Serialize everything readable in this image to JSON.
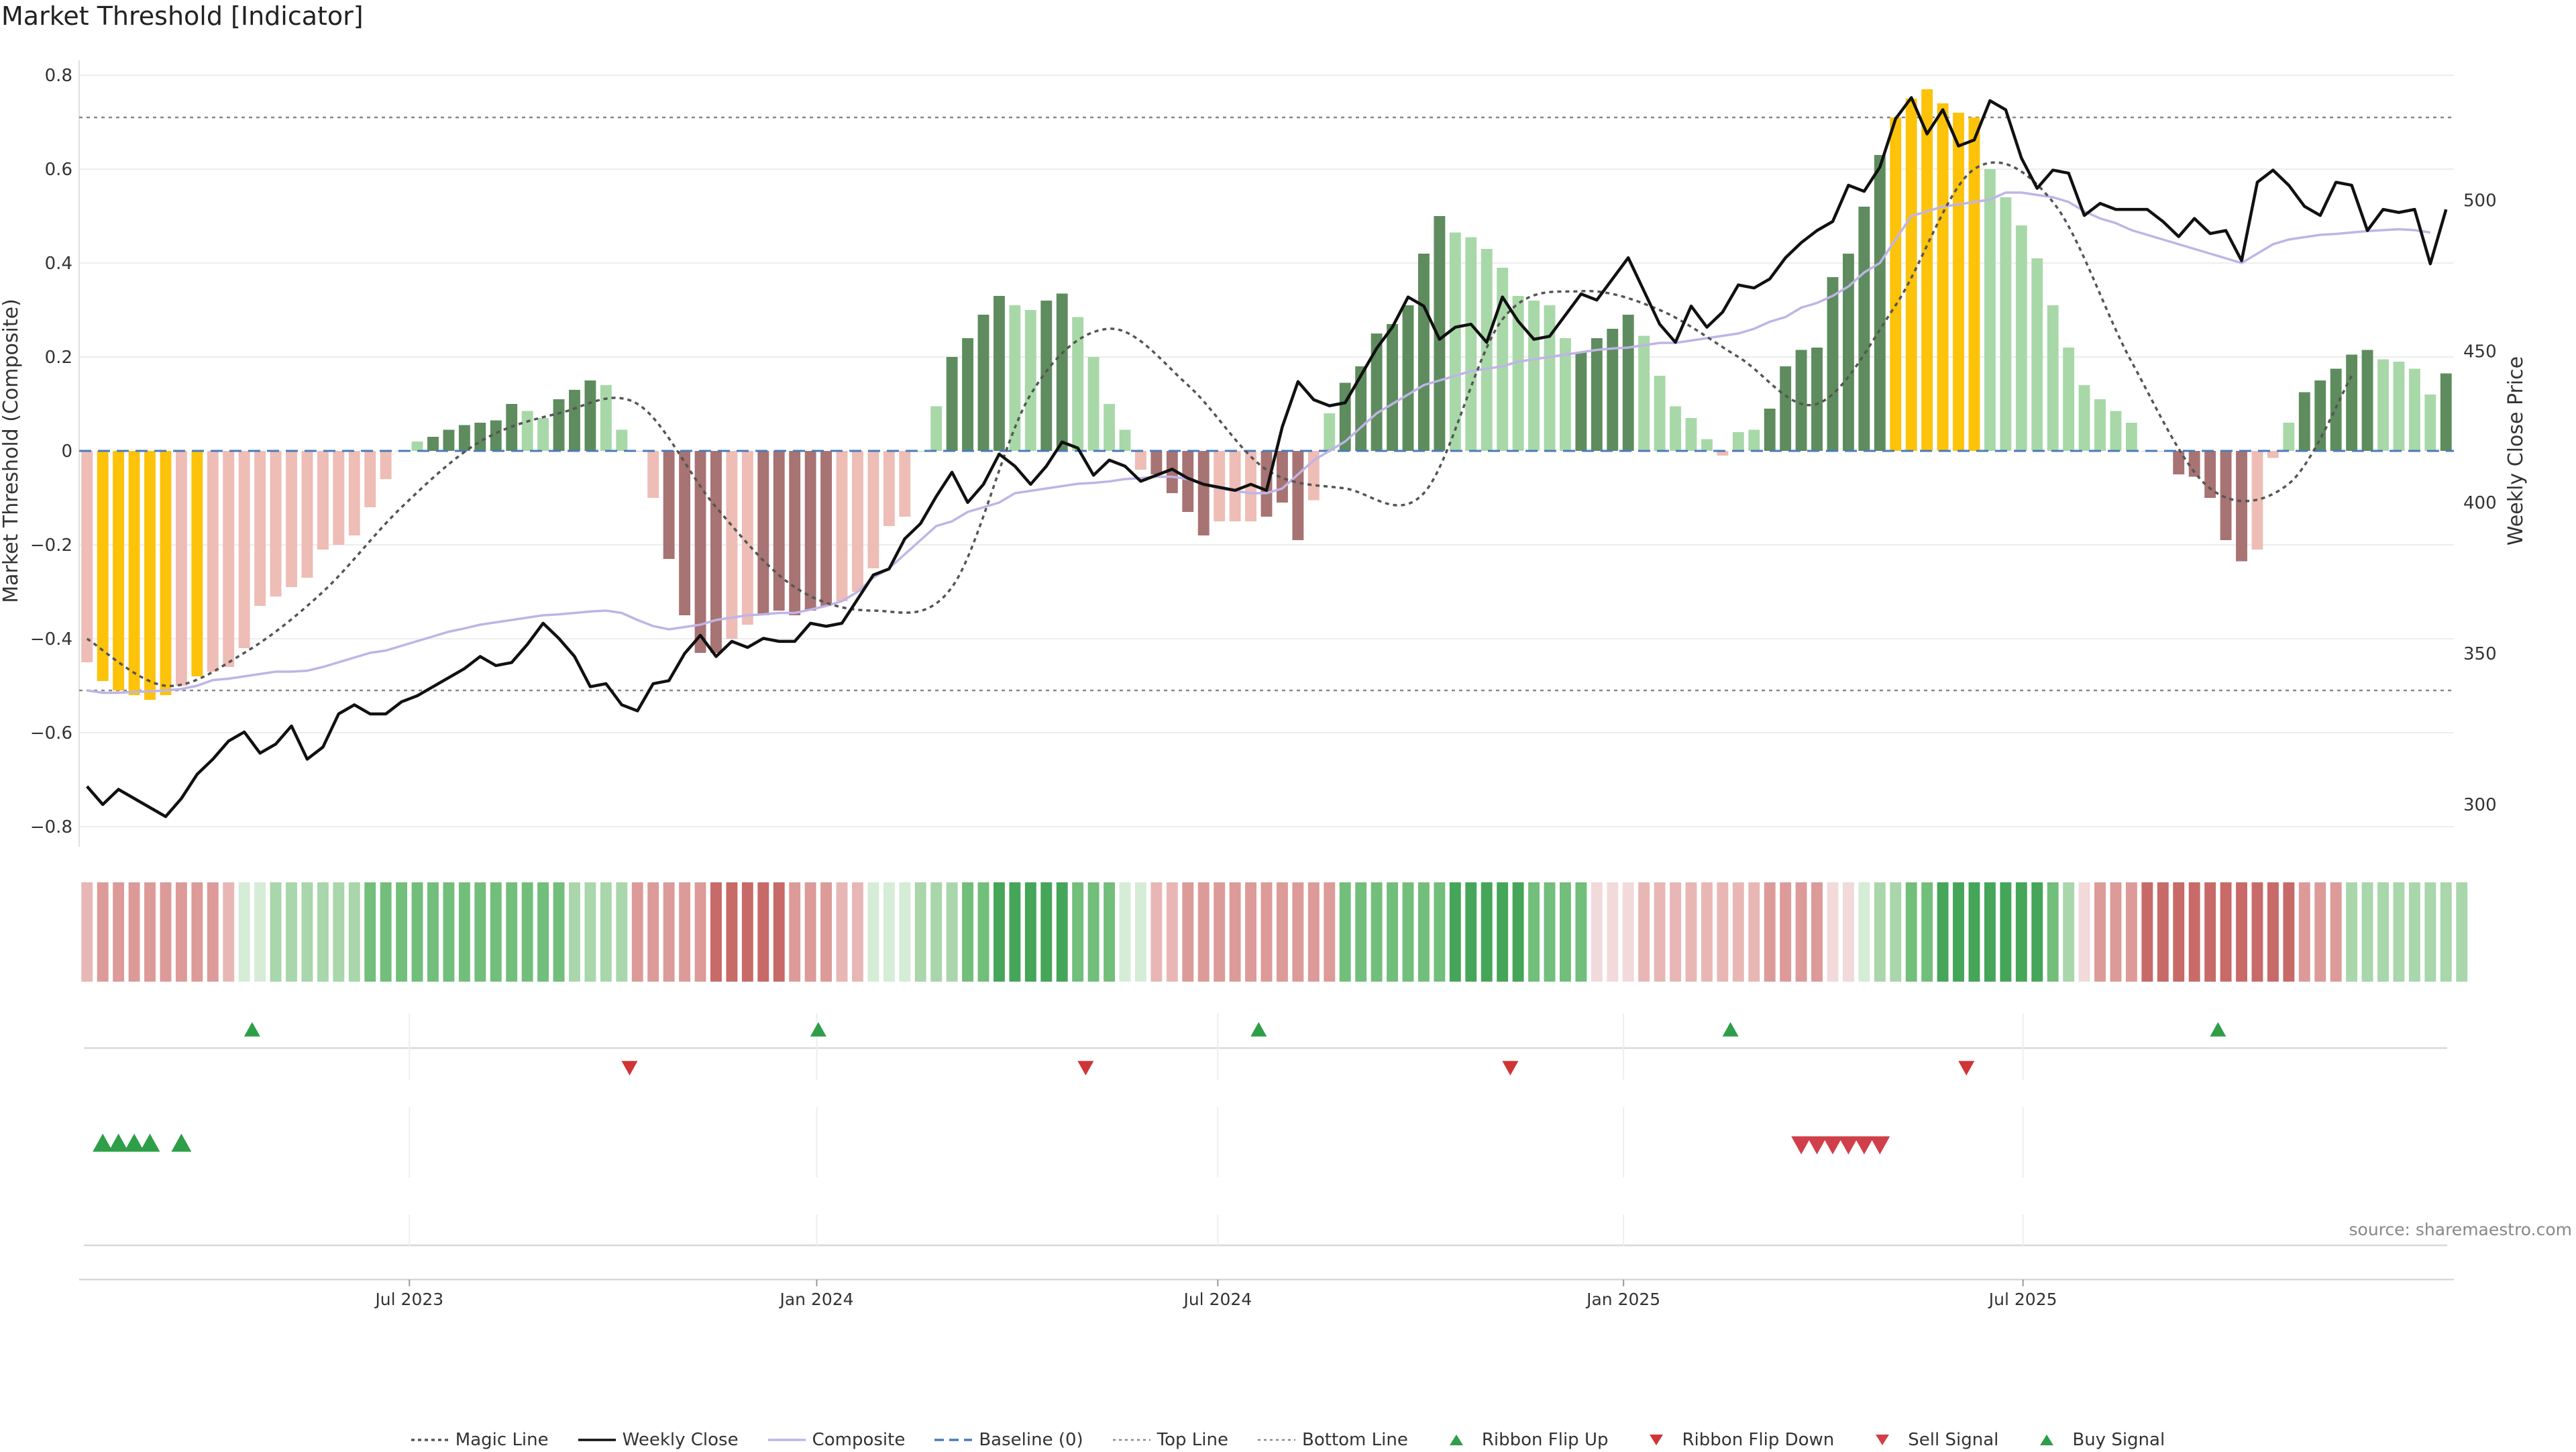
{
  "title": "Market Threshold [Indicator]",
  "source": "source: sharemaestro.com",
  "colors": {
    "yellow": "#FCC30A",
    "dark_green": "#5E8C5E",
    "light_green": "#A8D8A8",
    "dark_red": "#A87373",
    "light_red": "#EDBDB6",
    "magic": "#555555",
    "close": "#111111",
    "composite": "#BFB4E6",
    "baseline": "#4A7BB8",
    "flip_up": "#2E9E48",
    "flip_down": "#D03434",
    "sell": "#D0404A",
    "buy": "#2E9E48"
  },
  "chart_data": {
    "type": "bar",
    "title": "Market Threshold [Indicator]",
    "ylabel": "Market Threshold (Composite)",
    "y2label": "Weekly Close Price",
    "ylim": [
      -0.85,
      0.85
    ],
    "y2lim": [
      290,
      540
    ],
    "yticks": [
      "0.8",
      "0.6",
      "0.4",
      "0.2",
      "0",
      "−0.2",
      "−0.4",
      "−0.6",
      "−0.8"
    ],
    "yticks_values": [
      0.8,
      0.6,
      0.4,
      0.2,
      0,
      -0.2,
      -0.4,
      -0.6,
      -0.8
    ],
    "y2ticks": [
      "500",
      "450",
      "400",
      "350",
      "300"
    ],
    "y2ticks_values": [
      500,
      450,
      400,
      350,
      300
    ],
    "xticks": [
      "Jul 2023",
      "Jan 2024",
      "Jul 2024",
      "Jan 2025",
      "Jul 2025"
    ],
    "xticks_index": [
      20.5,
      46.4,
      71.9,
      97.7,
      123.1
    ],
    "top_line": 0.71,
    "bottom_line": -0.51,
    "composite": [
      -0.45,
      -0.49,
      -0.51,
      -0.52,
      -0.53,
      -0.52,
      -0.5,
      -0.48,
      -0.47,
      -0.46,
      -0.42,
      -0.33,
      -0.31,
      -0.29,
      -0.27,
      -0.21,
      -0.2,
      -0.18,
      -0.12,
      -0.06,
      0.0,
      0.02,
      0.03,
      0.045,
      0.055,
      0.06,
      0.065,
      0.1,
      0.085,
      0.07,
      0.11,
      0.13,
      0.15,
      0.14,
      0.045,
      0,
      -0.1,
      -0.23,
      -0.35,
      -0.43,
      -0.43,
      -0.4,
      -0.37,
      -0.35,
      -0.34,
      -0.35,
      -0.34,
      -0.33,
      -0.32,
      -0.3,
      -0.25,
      -0.16,
      -0.14,
      0,
      0.095,
      0.2,
      0.24,
      0.29,
      0.33,
      0.31,
      0.3,
      0.32,
      0.335,
      0.285,
      0.2,
      0.1,
      0.045,
      -0.04,
      -0.05,
      -0.09,
      -0.13,
      -0.18,
      -0.15,
      -0.15,
      -0.15,
      -0.14,
      -0.11,
      -0.19,
      -0.105,
      0.08,
      0.145,
      0.18,
      0.25,
      0.27,
      0.31,
      0.42,
      0.5,
      0.465,
      0.455,
      0.43,
      0.39,
      0.33,
      0.32,
      0.31,
      0.24,
      0.21,
      0.24,
      0.26,
      0.29,
      0.245,
      0.16,
      0.095,
      0.07,
      0.025,
      -0.01,
      0.04,
      0.045,
      0.09,
      0.18,
      0.215,
      0.22,
      0.37,
      0.42,
      0.52,
      0.63,
      0.71,
      0.75,
      0.77,
      0.74,
      0.72,
      0.71,
      0.6,
      0.54,
      0.48,
      0.41,
      0.31,
      0.22,
      0.14,
      0.11,
      0.085,
      0.06,
      0,
      0,
      -0.05,
      -0.055,
      -0.1,
      -0.19,
      -0.235,
      -0.21,
      -0.015,
      0.06,
      0.125,
      0.15,
      0.175,
      0.205,
      0.215,
      0.195,
      0.19,
      0.175,
      0.12,
      0.165
    ],
    "bar_colors": [
      "lr",
      "y",
      "y",
      "y",
      "y",
      "y",
      "lr",
      "y",
      "lr",
      "lr",
      "lr",
      "lr",
      "lr",
      "lr",
      "lr",
      "lr",
      "lr",
      "lr",
      "lr",
      "lr",
      "lg",
      "lg",
      "dg",
      "dg",
      "dg",
      "dg",
      "dg",
      "dg",
      "lg",
      "lg",
      "dg",
      "dg",
      "dg",
      "lg",
      "lg",
      "lr",
      "lr",
      "dr",
      "dr",
      "dr",
      "dr",
      "lr",
      "lr",
      "dr",
      "dr",
      "dr",
      "dr",
      "dr",
      "lr",
      "lr",
      "lr",
      "lr",
      "lr",
      "lg",
      "lg",
      "dg",
      "dg",
      "dg",
      "dg",
      "lg",
      "lg",
      "dg",
      "dg",
      "lg",
      "lg",
      "lg",
      "lg",
      "lr",
      "dr",
      "dr",
      "dr",
      "dr",
      "lr",
      "lr",
      "lr",
      "dr",
      "dr",
      "dr",
      "lr",
      "lg",
      "dg",
      "dg",
      "dg",
      "dg",
      "dg",
      "dg",
      "dg",
      "lg",
      "lg",
      "lg",
      "lg",
      "lg",
      "lg",
      "lg",
      "lg",
      "dg",
      "dg",
      "dg",
      "dg",
      "lg",
      "lg",
      "lg",
      "lg",
      "lg",
      "lr",
      "lg",
      "lg",
      "dg",
      "dg",
      "dg",
      "dg",
      "dg",
      "dg",
      "dg",
      "dg",
      "y",
      "y",
      "y",
      "y",
      "y",
      "y",
      "lg",
      "lg",
      "lg",
      "lg",
      "lg",
      "lg",
      "lg",
      "lg",
      "lg",
      "lg",
      "lg",
      "lr",
      "dr",
      "dr",
      "dr",
      "dr",
      "dr",
      "lr",
      "lr",
      "lg",
      "dg",
      "dg",
      "dg",
      "dg",
      "dg",
      "lg",
      "lg",
      "lg",
      "lg",
      "dg"
    ],
    "magic_line_x": [
      0,
      5,
      10,
      15,
      20,
      25,
      30,
      35,
      40,
      45,
      50,
      55,
      60,
      65,
      70,
      75,
      80,
      85,
      90,
      95,
      100,
      105,
      110,
      115,
      120,
      125,
      130,
      135,
      140,
      144
    ],
    "magic_line": [
      -0.4,
      -0.5,
      -0.43,
      -0.3,
      -0.12,
      0.02,
      0.08,
      0.1,
      -0.12,
      -0.29,
      -0.34,
      -0.29,
      0.12,
      0.26,
      0.14,
      -0.04,
      -0.08,
      -0.09,
      0.28,
      0.34,
      0.3,
      0.2,
      0.1,
      0.31,
      0.6,
      0.53,
      0.19,
      -0.08,
      -0.07,
      0.16
    ],
    "weekly_close": [
      306,
      300,
      305,
      302,
      299,
      296,
      302,
      310,
      315,
      321,
      324,
      317,
      320,
      326,
      315,
      319,
      330,
      333,
      330,
      330,
      334,
      336,
      339,
      342,
      345,
      349,
      346,
      347,
      353,
      360,
      355,
      349,
      339,
      340,
      333,
      331,
      340,
      341,
      350,
      356,
      349,
      354,
      352,
      355,
      354,
      354,
      360,
      359,
      360,
      368,
      376,
      378,
      388,
      393,
      402,
      410,
      400,
      406,
      416,
      412,
      406,
      412,
      420,
      418,
      409,
      414,
      412,
      407,
      409,
      411,
      408,
      406,
      405,
      404,
      406,
      404,
      425,
      440,
      434,
      432,
      433,
      442,
      451,
      458,
      468,
      465,
      454,
      458,
      459,
      453,
      468,
      460,
      454,
      455,
      462,
      469,
      467,
      474,
      481,
      470,
      459,
      453,
      465,
      458,
      463,
      472,
      471,
      474,
      481,
      486,
      490,
      493,
      505,
      503,
      511,
      527,
      534,
      522,
      530,
      518,
      520,
      533,
      530,
      514,
      504,
      510,
      509,
      495,
      499,
      497,
      497,
      497,
      493,
      488,
      494,
      489,
      490,
      480,
      506,
      510,
      505,
      498,
      495,
      506,
      505,
      490,
      497,
      496,
      497,
      479,
      497
    ],
    "composite_line": [
      -0.51,
      -0.515,
      -0.515,
      -0.513,
      -0.512,
      -0.51,
      -0.507,
      -0.5,
      -0.488,
      -0.485,
      -0.48,
      -0.475,
      -0.47,
      -0.47,
      -0.468,
      -0.46,
      -0.45,
      -0.44,
      -0.43,
      -0.425,
      -0.415,
      -0.405,
      -0.395,
      -0.385,
      -0.378,
      -0.37,
      -0.365,
      -0.36,
      -0.355,
      -0.35,
      -0.348,
      -0.345,
      -0.342,
      -0.34,
      -0.345,
      -0.36,
      -0.373,
      -0.38,
      -0.375,
      -0.37,
      -0.36,
      -0.355,
      -0.35,
      -0.348,
      -0.345,
      -0.345,
      -0.338,
      -0.33,
      -0.32,
      -0.3,
      -0.27,
      -0.25,
      -0.22,
      -0.19,
      -0.16,
      -0.15,
      -0.13,
      -0.12,
      -0.11,
      -0.09,
      -0.085,
      -0.08,
      -0.075,
      -0.07,
      -0.068,
      -0.065,
      -0.06,
      -0.058,
      -0.055,
      -0.055,
      -0.06,
      -0.07,
      -0.08,
      -0.085,
      -0.09,
      -0.09,
      -0.08,
      -0.05,
      -0.02,
      0.0,
      0.02,
      0.05,
      0.08,
      0.1,
      0.12,
      0.14,
      0.15,
      0.16,
      0.17,
      0.175,
      0.18,
      0.19,
      0.195,
      0.2,
      0.205,
      0.21,
      0.215,
      0.218,
      0.22,
      0.225,
      0.23,
      0.23,
      0.235,
      0.24,
      0.245,
      0.25,
      0.26,
      0.275,
      0.285,
      0.305,
      0.315,
      0.33,
      0.35,
      0.38,
      0.4,
      0.45,
      0.5,
      0.51,
      0.52,
      0.525,
      0.53,
      0.535,
      0.55,
      0.55,
      0.545,
      0.54,
      0.53,
      0.51,
      0.495,
      0.485,
      0.47,
      0.46,
      0.45,
      0.44,
      0.43,
      0.42,
      0.41,
      0.4,
      0.42,
      0.44,
      0.45,
      0.455,
      0.46,
      0.462,
      0.465,
      0.468,
      0.47,
      0.472,
      0.47,
      0.465
    ]
  },
  "ribbon": [
    "rl",
    "rm",
    "rm",
    "rm",
    "rm",
    "rm",
    "rm",
    "rm",
    "rm",
    "rl",
    "gp",
    "gp",
    "gl",
    "gl",
    "gl",
    "gl",
    "gl",
    "gl",
    "gm",
    "gm",
    "gm",
    "gm",
    "gm",
    "gm",
    "gm",
    "gm",
    "gm",
    "gm",
    "gm",
    "gm",
    "gm",
    "gl",
    "gl",
    "gl",
    "gl",
    "rm",
    "rm",
    "rm",
    "rm",
    "rm",
    "rh",
    "rh",
    "rh",
    "rh",
    "rh",
    "rm",
    "rm",
    "rm",
    "rl",
    "rl",
    "gp",
    "gp",
    "gp",
    "gl",
    "gl",
    "gl",
    "gm",
    "gm",
    "gh",
    "gh",
    "gh",
    "gh",
    "gh",
    "gm",
    "gm",
    "gm",
    "gp",
    "gp",
    "rl",
    "rl",
    "rm",
    "rm",
    "rm",
    "rm",
    "rm",
    "rm",
    "rm",
    "rm",
    "rm",
    "rm",
    "gm",
    "gm",
    "gm",
    "gm",
    "gm",
    "gm",
    "gm",
    "gh",
    "gh",
    "gh",
    "gh",
    "gh",
    "gm",
    "gm",
    "gm",
    "gm",
    "rp",
    "rp",
    "rp",
    "rl",
    "rl",
    "rl",
    "rl",
    "rl",
    "rl",
    "rl",
    "rl",
    "rm",
    "rm",
    "rm",
    "rm",
    "rp",
    "rp",
    "gp",
    "gl",
    "gl",
    "gm",
    "gm",
    "gh",
    "gh",
    "gh",
    "gh",
    "gh",
    "gh",
    "gh",
    "gm",
    "gl",
    "rp",
    "rm",
    "rm",
    "rm",
    "rh",
    "rh",
    "rh",
    "rh",
    "rh",
    "rh",
    "rh",
    "rh",
    "rh",
    "rh",
    "rm",
    "rm",
    "rm",
    "gl",
    "gl",
    "gl",
    "gl",
    "gl",
    "gl",
    "gl",
    "gl"
  ],
  "ribbon_flip_up": [
    10.5,
    46.5,
    74.5,
    104.5,
    135.5
  ],
  "ribbon_flip_down": [
    34.5,
    63.5,
    90.5,
    119.5
  ],
  "buy_signals": [
    1,
    2,
    3,
    4,
    6
  ],
  "sell_signals": [
    109,
    110,
    111,
    112,
    113,
    114
  ],
  "legend": [
    {
      "label": "Magic Line",
      "symbol": "dotted",
      "color": "#555555"
    },
    {
      "label": "Weekly Close",
      "symbol": "solid",
      "color": "#111111"
    },
    {
      "label": "Composite",
      "symbol": "solid",
      "color": "#BFB4E6"
    },
    {
      "label": "Baseline (0)",
      "symbol": "dashed",
      "color": "#4A7BB8"
    },
    {
      "label": "Top Line",
      "symbol": "dotted-light",
      "color": "#888888"
    },
    {
      "label": "Bottom Line",
      "symbol": "dotted-light",
      "color": "#888888"
    },
    {
      "label": "Ribbon Flip Up",
      "symbol": "tri-up",
      "color": "#2E9E48"
    },
    {
      "label": "Ribbon Flip Down",
      "symbol": "tri-down",
      "color": "#D03434"
    },
    {
      "label": "Sell Signal",
      "symbol": "tri-down",
      "color": "#D0404A"
    },
    {
      "label": "Buy Signal",
      "symbol": "tri-up",
      "color": "#2E9E48"
    }
  ]
}
